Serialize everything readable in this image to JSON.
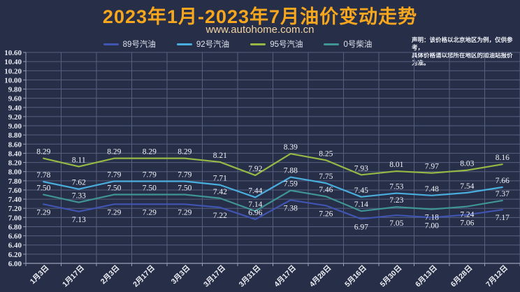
{
  "header": {
    "title": "2023年1月-2023年7月油价变动走势",
    "subtitle": "www.autohome.com.cn",
    "disclaimer_line1": "声明：该价格以北京地区为例，仅供参考，",
    "disclaimer_line2": "具体价格请以您所在地区的加油站报价为准。"
  },
  "colors": {
    "background": "#272e47",
    "title": "#f7a71e",
    "subtitle": "#f2d3a2",
    "grid": "#566080",
    "axis_line": "#9aa0b5",
    "axis_text": "#e8ebf4",
    "data_label": "#f2f4fa"
  },
  "chart_data": {
    "type": "line",
    "title": "2023年1月-2023年7月油价变动走势",
    "xlabel": "",
    "ylabel": "",
    "ylim": [
      6.0,
      10.6
    ],
    "ytick_step": 0.2,
    "grid": true,
    "legend_position": "top",
    "categories": [
      "1月3日",
      "1月17日",
      "2月3日",
      "2月17日",
      "3月3日",
      "3月17日",
      "3月31日",
      "4月17日",
      "4月28日",
      "5月16日",
      "5月30日",
      "6月13日",
      "6月28日",
      "7月12日"
    ],
    "series": [
      {
        "name": "89号汽油",
        "color": "#4054b2",
        "values": [
          7.29,
          7.13,
          7.29,
          7.29,
          7.29,
          7.22,
          6.96,
          7.38,
          7.26,
          6.97,
          7.05,
          7.0,
          7.06,
          7.17
        ],
        "label_sides": [
          "below",
          "below",
          "below",
          "below",
          "below",
          "below",
          "above",
          "below",
          "below",
          "below",
          "below",
          "below",
          "below",
          "below"
        ]
      },
      {
        "name": "92号汽油",
        "color": "#49aede",
        "values": [
          7.78,
          7.62,
          7.79,
          7.79,
          7.79,
          7.71,
          7.44,
          7.88,
          7.75,
          7.45,
          7.53,
          7.48,
          7.54,
          7.66
        ],
        "label_sides": [
          "above",
          "above",
          "above",
          "above",
          "above",
          "above",
          "above",
          "above",
          "above",
          "above",
          "above",
          "above",
          "above",
          "above"
        ]
      },
      {
        "name": "95号汽油",
        "color": "#95b944",
        "values": [
          8.29,
          8.11,
          8.29,
          8.29,
          8.29,
          8.21,
          7.92,
          8.39,
          8.25,
          7.93,
          8.01,
          7.97,
          8.03,
          8.16
        ],
        "label_sides": [
          "above",
          "above",
          "above",
          "above",
          "above",
          "above",
          "above",
          "above",
          "above",
          "above",
          "above",
          "above",
          "above",
          "above"
        ]
      },
      {
        "name": "0号柴油",
        "color": "#3f9495",
        "values": [
          7.5,
          7.33,
          7.5,
          7.5,
          7.5,
          7.42,
          7.14,
          7.59,
          7.46,
          7.14,
          7.23,
          7.18,
          7.24,
          7.37
        ],
        "label_sides": [
          "above",
          "above",
          "above",
          "above",
          "above",
          "above",
          "above",
          "above",
          "above",
          "above",
          "above",
          "below",
          "below",
          "above"
        ]
      }
    ]
  }
}
